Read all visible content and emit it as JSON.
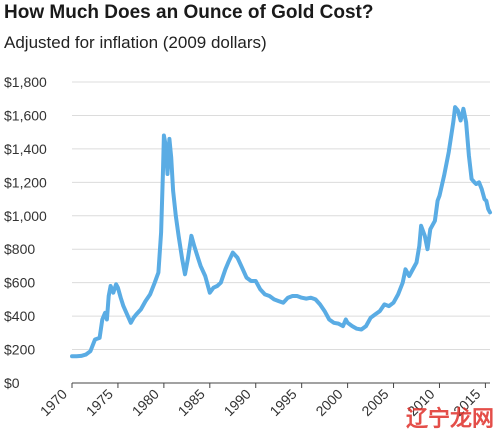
{
  "header": {
    "title": "How Much Does an Ounce of Gold Cost?",
    "subtitle": "Adjusted for inflation (2009 dollars)"
  },
  "watermark": {
    "text": "辽宁龙网"
  },
  "colors": {
    "line": "#5aace4",
    "grid": "#dcdcdc",
    "axis": "#444444"
  },
  "chart_data": {
    "type": "line",
    "title": "How Much Does an Ounce of Gold Cost?",
    "subtitle": "Adjusted for inflation (2009 dollars)",
    "xlabel": "",
    "ylabel": "",
    "xlim": [
      1970,
      2015.5
    ],
    "ylim": [
      0,
      1800
    ],
    "x_ticks": [
      1970,
      1975,
      1980,
      1985,
      1990,
      1995,
      2000,
      2005,
      2010,
      2015
    ],
    "x_tick_labels": [
      "1970",
      "1975",
      "1980",
      "1985",
      "1990",
      "1995",
      "2000",
      "2005",
      "2010",
      "2015"
    ],
    "y_ticks": [
      0,
      200,
      400,
      600,
      800,
      1000,
      1200,
      1400,
      1600,
      1800
    ],
    "y_tick_labels": [
      "$0",
      "$200",
      "$400",
      "$600",
      "$800",
      "$1,000",
      "$1,200",
      "$1,400",
      "$1,600",
      "$1,800"
    ],
    "grid": "horizontal",
    "series": [
      {
        "points": [
          [
            1970.0,
            160
          ],
          [
            1970.5,
            160
          ],
          [
            1971.0,
            162
          ],
          [
            1971.5,
            170
          ],
          [
            1972.0,
            190
          ],
          [
            1972.5,
            260
          ],
          [
            1973.0,
            270
          ],
          [
            1973.3,
            380
          ],
          [
            1973.6,
            420
          ],
          [
            1973.8,
            380
          ],
          [
            1974.0,
            520
          ],
          [
            1974.2,
            580
          ],
          [
            1974.5,
            540
          ],
          [
            1974.8,
            590
          ],
          [
            1975.0,
            570
          ],
          [
            1975.3,
            510
          ],
          [
            1975.6,
            460
          ],
          [
            1976.0,
            410
          ],
          [
            1976.4,
            360
          ],
          [
            1976.7,
            390
          ],
          [
            1977.0,
            410
          ],
          [
            1977.5,
            440
          ],
          [
            1978.0,
            490
          ],
          [
            1978.5,
            530
          ],
          [
            1979.0,
            600
          ],
          [
            1979.4,
            660
          ],
          [
            1979.7,
            900
          ],
          [
            1979.9,
            1250
          ],
          [
            1980.0,
            1480
          ],
          [
            1980.2,
            1420
          ],
          [
            1980.4,
            1250
          ],
          [
            1980.6,
            1460
          ],
          [
            1980.8,
            1350
          ],
          [
            1981.0,
            1150
          ],
          [
            1981.3,
            1000
          ],
          [
            1981.6,
            880
          ],
          [
            1982.0,
            740
          ],
          [
            1982.3,
            650
          ],
          [
            1982.6,
            740
          ],
          [
            1983.0,
            880
          ],
          [
            1983.3,
            820
          ],
          [
            1983.7,
            750
          ],
          [
            1984.0,
            700
          ],
          [
            1984.5,
            640
          ],
          [
            1985.0,
            540
          ],
          [
            1985.4,
            570
          ],
          [
            1985.8,
            580
          ],
          [
            1986.2,
            600
          ],
          [
            1986.7,
            680
          ],
          [
            1987.0,
            720
          ],
          [
            1987.5,
            780
          ],
          [
            1988.0,
            750
          ],
          [
            1988.5,
            690
          ],
          [
            1989.0,
            630
          ],
          [
            1989.5,
            610
          ],
          [
            1990.0,
            610
          ],
          [
            1990.5,
            560
          ],
          [
            1991.0,
            530
          ],
          [
            1991.5,
            520
          ],
          [
            1992.0,
            500
          ],
          [
            1992.5,
            490
          ],
          [
            1993.0,
            480
          ],
          [
            1993.5,
            510
          ],
          [
            1994.0,
            520
          ],
          [
            1994.5,
            520
          ],
          [
            1995.0,
            510
          ],
          [
            1995.5,
            505
          ],
          [
            1996.0,
            510
          ],
          [
            1996.5,
            500
          ],
          [
            1997.0,
            470
          ],
          [
            1997.5,
            430
          ],
          [
            1998.0,
            380
          ],
          [
            1998.5,
            360
          ],
          [
            1999.0,
            355
          ],
          [
            1999.5,
            340
          ],
          [
            1999.8,
            380
          ],
          [
            2000.0,
            360
          ],
          [
            2000.5,
            340
          ],
          [
            2001.0,
            325
          ],
          [
            2001.5,
            320
          ],
          [
            2002.0,
            340
          ],
          [
            2002.5,
            390
          ],
          [
            2003.0,
            410
          ],
          [
            2003.5,
            430
          ],
          [
            2004.0,
            470
          ],
          [
            2004.5,
            460
          ],
          [
            2005.0,
            480
          ],
          [
            2005.5,
            530
          ],
          [
            2006.0,
            600
          ],
          [
            2006.3,
            680
          ],
          [
            2006.7,
            640
          ],
          [
            2007.0,
            670
          ],
          [
            2007.5,
            720
          ],
          [
            2007.8,
            820
          ],
          [
            2008.0,
            940
          ],
          [
            2008.4,
            880
          ],
          [
            2008.7,
            800
          ],
          [
            2009.0,
            920
          ],
          [
            2009.5,
            970
          ],
          [
            2009.8,
            1090
          ],
          [
            2010.0,
            1120
          ],
          [
            2010.5,
            1240
          ],
          [
            2011.0,
            1380
          ],
          [
            2011.5,
            1560
          ],
          [
            2011.7,
            1650
          ],
          [
            2012.0,
            1630
          ],
          [
            2012.3,
            1570
          ],
          [
            2012.6,
            1640
          ],
          [
            2012.9,
            1560
          ],
          [
            2013.2,
            1360
          ],
          [
            2013.5,
            1220
          ],
          [
            2013.8,
            1200
          ],
          [
            2014.0,
            1190
          ],
          [
            2014.3,
            1200
          ],
          [
            2014.6,
            1160
          ],
          [
            2014.9,
            1100
          ],
          [
            2015.1,
            1090
          ],
          [
            2015.3,
            1040
          ],
          [
            2015.5,
            1020
          ]
        ]
      }
    ]
  }
}
